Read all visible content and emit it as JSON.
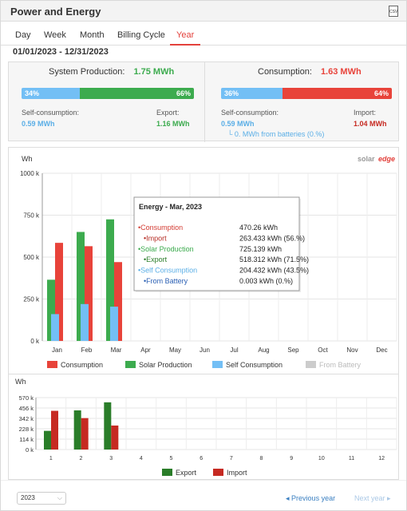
{
  "header": {
    "title": "Power and Energy",
    "csv_icon": "csv-icon",
    "csv_label": "CSV"
  },
  "tabs": [
    {
      "label": "Day"
    },
    {
      "label": "Week"
    },
    {
      "label": "Month"
    },
    {
      "label": "Billing Cycle"
    },
    {
      "label": "Year"
    }
  ],
  "active_tab": "Year",
  "date_range": "01/01/2023 - 12/31/2023",
  "production": {
    "label": "System Production:",
    "value": "1.75 MWh",
    "pct_self": "34%",
    "pct_export": "66%",
    "self_fraction": 0.34,
    "self_label": "Self-consumption:",
    "self_value": "0.59 MWh",
    "export_label": "Export:",
    "export_value": "1.16 MWh"
  },
  "consumption": {
    "label": "Consumption:",
    "value": "1.63 MWh",
    "pct_self": "36%",
    "pct_import": "64%",
    "self_fraction": 0.36,
    "self_label": "Self-consumption:",
    "self_value": "0.59 MWh",
    "batteries_value": "└ 0. MWh from batteries (0.%)",
    "import_label": "Import:",
    "import_value": "1.04 MWh"
  },
  "colors": {
    "consumption": "#e8433a",
    "production": "#3cab4e",
    "self": "#73bff5",
    "battery": "#cccccc",
    "export": "#2a7d29",
    "import": "#c62a22",
    "accent": "#e3413c"
  },
  "logo": {
    "text_solar": "solar",
    "text_edge": "edge"
  },
  "tooltip": {
    "title": "Energy - Mar, 2023",
    "rows": [
      {
        "label": "•Consumption",
        "value": "470.26 kWh",
        "color": "#d33b32"
      },
      {
        "label": "•Import",
        "value": "263.433 kWh (56.%)",
        "color": "#b42a22"
      },
      {
        "label": "•Solar Production",
        "value": "725.139 kWh",
        "color": "#3cab4e"
      },
      {
        "label": "•Export",
        "value": "518.312 kWh (71.5%)",
        "color": "#2a7d29"
      },
      {
        "label": "•Self Consumption",
        "value": "204.432 kWh (43.5%)",
        "color": "#5aaee6"
      },
      {
        "label": "•From Battery",
        "value": "0.003 kWh (0.%)",
        "color": "#2a5fb3"
      }
    ]
  },
  "chart_data": [
    {
      "type": "bar",
      "ylabel": "Wh",
      "categories": [
        "Jan",
        "Feb",
        "Mar",
        "Apr",
        "May",
        "Jun",
        "Jul",
        "Aug",
        "Sep",
        "Oct",
        "Nov",
        "Dec"
      ],
      "yticks": [
        "0 k",
        "250 k",
        "500 k",
        "750 k",
        "1000 k"
      ],
      "ylim": [
        0,
        1000000
      ],
      "series": [
        {
          "name": "Consumption",
          "values": [
            585000,
            565000,
            470260,
            0,
            0,
            0,
            0,
            0,
            0,
            0,
            0,
            0
          ]
        },
        {
          "name": "Solar Production",
          "values": [
            365000,
            650000,
            725139,
            0,
            0,
            0,
            0,
            0,
            0,
            0,
            0,
            0
          ]
        },
        {
          "name": "Self Consumption",
          "values": [
            160000,
            220000,
            204432,
            0,
            0,
            0,
            0,
            0,
            0,
            0,
            0,
            0
          ]
        },
        {
          "name": "From Battery",
          "values": [
            0,
            0,
            0.003,
            0,
            0,
            0,
            0,
            0,
            0,
            0,
            0,
            0
          ]
        }
      ],
      "legend": [
        "Consumption",
        "Solar Production",
        "Self Consumption",
        "From Battery"
      ]
    },
    {
      "type": "bar",
      "ylabel": "Wh",
      "categories": [
        "1",
        "2",
        "3",
        "4",
        "5",
        "6",
        "7",
        "8",
        "9",
        "10",
        "11",
        "12"
      ],
      "yticks": [
        "0 k",
        "114 k",
        "228 k",
        "342 k",
        "456 k",
        "570 k"
      ],
      "ylim": [
        0,
        570000
      ],
      "series": [
        {
          "name": "Export",
          "values": [
            205000,
            430000,
            518312,
            0,
            0,
            0,
            0,
            0,
            0,
            0,
            0,
            0
          ]
        },
        {
          "name": "Import",
          "values": [
            425000,
            345000,
            263433,
            0,
            0,
            0,
            0,
            0,
            0,
            0,
            0,
            0
          ]
        }
      ],
      "legend": [
        "Export",
        "Import"
      ]
    }
  ],
  "footer": {
    "year": "2023",
    "prev": "Previous year",
    "next": "Next year"
  }
}
